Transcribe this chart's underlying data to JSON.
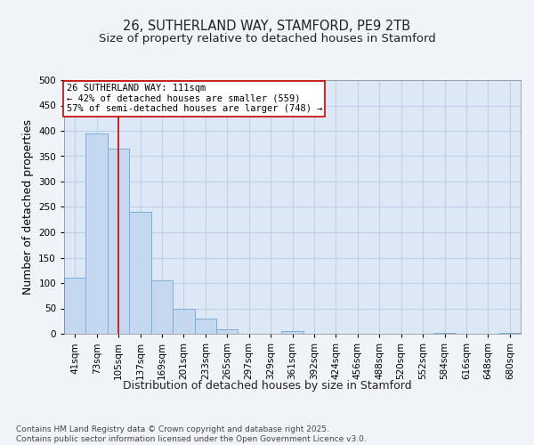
{
  "title1": "26, SUTHERLAND WAY, STAMFORD, PE9 2TB",
  "title2": "Size of property relative to detached houses in Stamford",
  "xlabel": "Distribution of detached houses by size in Stamford",
  "ylabel": "Number of detached properties",
  "categories": [
    "41sqm",
    "73sqm",
    "105sqm",
    "137sqm",
    "169sqm",
    "201sqm",
    "233sqm",
    "265sqm",
    "297sqm",
    "329sqm",
    "361sqm",
    "392sqm",
    "424sqm",
    "456sqm",
    "488sqm",
    "520sqm",
    "552sqm",
    "584sqm",
    "616sqm",
    "648sqm",
    "680sqm"
  ],
  "values": [
    110,
    395,
    365,
    240,
    105,
    50,
    30,
    8,
    0,
    0,
    5,
    0,
    0,
    0,
    0,
    0,
    0,
    2,
    0,
    0,
    2
  ],
  "bar_color": "#c5d8f0",
  "bar_edge_color": "#7bafd4",
  "vline_x": 2.0,
  "vline_color": "#cc0000",
  "annotation_box_text": "26 SUTHERLAND WAY: 111sqm\n← 42% of detached houses are smaller (559)\n57% of semi-detached houses are larger (748) →",
  "annotation_box_color": "#cc0000",
  "annotation_box_face": "#ffffff",
  "ylim": [
    0,
    500
  ],
  "yticks": [
    0,
    50,
    100,
    150,
    200,
    250,
    300,
    350,
    400,
    450,
    500
  ],
  "background_color": "#f0f4f8",
  "plot_bg_color": "#dce8f5",
  "grid_color": "#c0d0e8",
  "footer": "Contains HM Land Registry data © Crown copyright and database right 2025.\nContains public sector information licensed under the Open Government Licence v3.0.",
  "title_fontsize": 10.5,
  "subtitle_fontsize": 9.5,
  "axis_label_fontsize": 9,
  "tick_fontsize": 7.5,
  "annotation_fontsize": 7.5,
  "footer_fontsize": 6.5
}
